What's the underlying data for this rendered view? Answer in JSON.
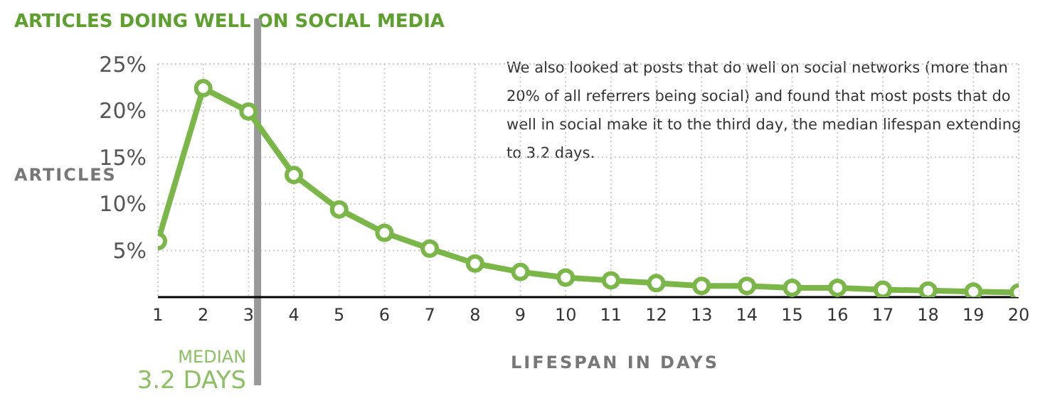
{
  "chart_data": {
    "type": "line",
    "title": "ARTICLES DOING WELL ON SOCIAL MEDIA",
    "xlabel": "LIFESPAN IN DAYS",
    "ylabel": "ARTICLES",
    "x": [
      1,
      2,
      3,
      4,
      5,
      6,
      7,
      8,
      9,
      10,
      11,
      12,
      13,
      14,
      15,
      16,
      17,
      18,
      19,
      20
    ],
    "series": [
      {
        "color": "#7ab648",
        "values": [
          6.0,
          22.4,
          19.9,
          13.1,
          9.4,
          6.9,
          5.2,
          3.6,
          2.7,
          2.1,
          1.8,
          1.5,
          1.2,
          1.2,
          1.0,
          1.0,
          0.8,
          0.7,
          0.6,
          0.5
        ]
      }
    ],
    "xlim": [
      1,
      20
    ],
    "xticks": [
      1,
      2,
      3,
      4,
      5,
      6,
      7,
      8,
      9,
      10,
      11,
      12,
      13,
      14,
      15,
      16,
      17,
      18,
      19,
      20
    ],
    "ylim": [
      0,
      25
    ],
    "yticks": [
      {
        "value": 5,
        "label": "5%"
      },
      {
        "value": 10,
        "label": "10%"
      },
      {
        "value": 15,
        "label": "15%"
      },
      {
        "value": 20,
        "label": "20%"
      },
      {
        "value": 25,
        "label": "25%"
      }
    ],
    "ref_lines": [
      {
        "axis": "x",
        "value": 3.2,
        "label": "MEDIAN 3.2 DAYS",
        "color": "#999999"
      }
    ],
    "annotations": [
      "We also looked at posts that do well on social networks (more than 20% of all referrers being social) and found that most posts that do well in social make it to the third day, the median lifespan extending to 3.2 days."
    ],
    "grid": true,
    "marker": "circle",
    "line_style": "solid"
  }
}
